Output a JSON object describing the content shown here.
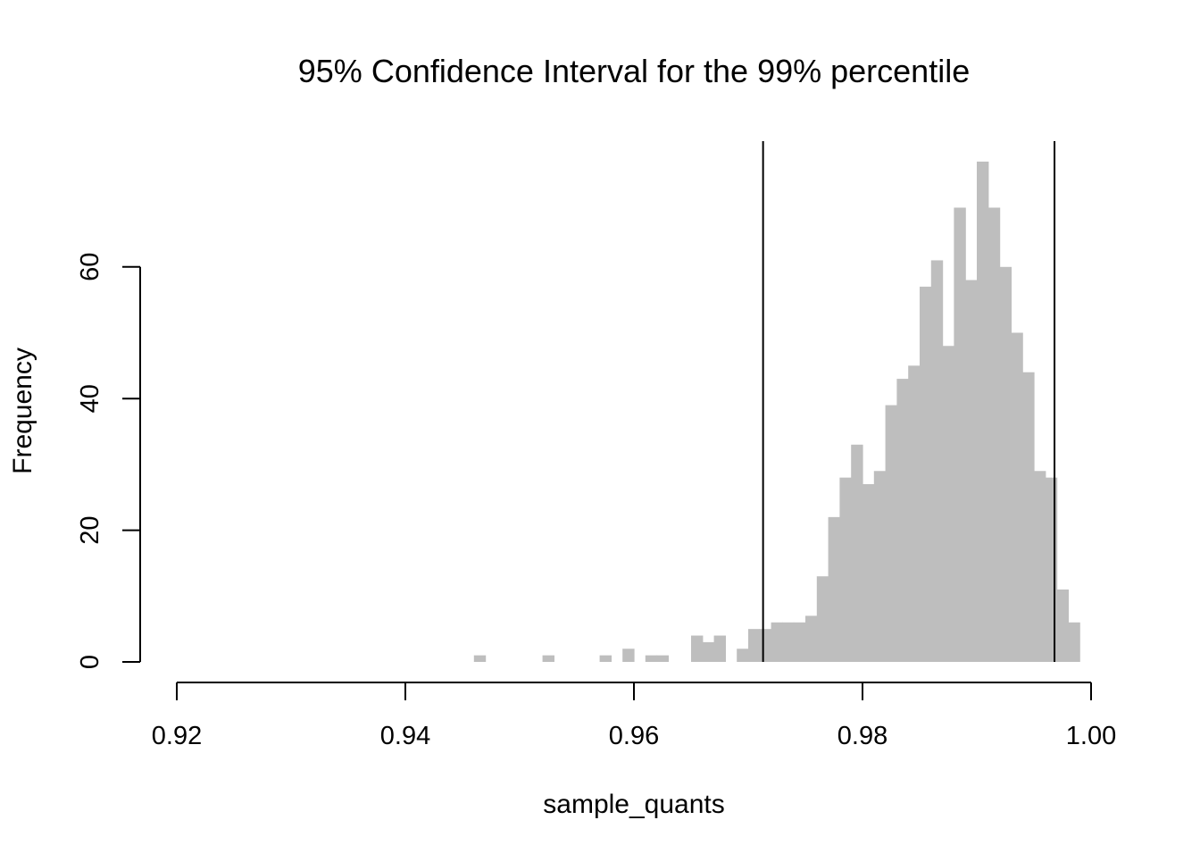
{
  "chart_data": {
    "type": "bar",
    "subtype": "histogram",
    "title": "95% Confidence Interval for the 99% percentile",
    "xlabel": "sample_quants",
    "ylabel": "Frequency",
    "xlim": [
      0.92,
      1.0
    ],
    "ylim": [
      0,
      76
    ],
    "x_ticks": [
      0.92,
      0.94,
      0.96,
      0.98,
      1.0
    ],
    "x_tick_labels": [
      "0.92",
      "0.94",
      "0.96",
      "0.98",
      "1.00"
    ],
    "y_ticks": [
      0,
      20,
      40,
      60
    ],
    "y_tick_labels": [
      "0",
      "20",
      "40",
      "60"
    ],
    "bin_width": 0.001,
    "bins": [
      {
        "x0": 0.946,
        "x1": 0.947,
        "count": 1
      },
      {
        "x0": 0.952,
        "x1": 0.953,
        "count": 1
      },
      {
        "x0": 0.957,
        "x1": 0.958,
        "count": 1
      },
      {
        "x0": 0.959,
        "x1": 0.96,
        "count": 2
      },
      {
        "x0": 0.961,
        "x1": 0.962,
        "count": 1
      },
      {
        "x0": 0.962,
        "x1": 0.963,
        "count": 1
      },
      {
        "x0": 0.965,
        "x1": 0.966,
        "count": 4
      },
      {
        "x0": 0.966,
        "x1": 0.967,
        "count": 3
      },
      {
        "x0": 0.967,
        "x1": 0.968,
        "count": 4
      },
      {
        "x0": 0.969,
        "x1": 0.97,
        "count": 2
      },
      {
        "x0": 0.97,
        "x1": 0.971,
        "count": 5
      },
      {
        "x0": 0.971,
        "x1": 0.972,
        "count": 5
      },
      {
        "x0": 0.972,
        "x1": 0.973,
        "count": 6
      },
      {
        "x0": 0.973,
        "x1": 0.974,
        "count": 6
      },
      {
        "x0": 0.974,
        "x1": 0.975,
        "count": 6
      },
      {
        "x0": 0.975,
        "x1": 0.976,
        "count": 7
      },
      {
        "x0": 0.976,
        "x1": 0.977,
        "count": 13
      },
      {
        "x0": 0.977,
        "x1": 0.978,
        "count": 22
      },
      {
        "x0": 0.978,
        "x1": 0.979,
        "count": 28
      },
      {
        "x0": 0.979,
        "x1": 0.98,
        "count": 33
      },
      {
        "x0": 0.98,
        "x1": 0.981,
        "count": 27
      },
      {
        "x0": 0.981,
        "x1": 0.982,
        "count": 29
      },
      {
        "x0": 0.982,
        "x1": 0.983,
        "count": 39
      },
      {
        "x0": 0.983,
        "x1": 0.984,
        "count": 43
      },
      {
        "x0": 0.984,
        "x1": 0.985,
        "count": 45
      },
      {
        "x0": 0.985,
        "x1": 0.986,
        "count": 57
      },
      {
        "x0": 0.986,
        "x1": 0.987,
        "count": 61
      },
      {
        "x0": 0.987,
        "x1": 0.988,
        "count": 48
      },
      {
        "x0": 0.988,
        "x1": 0.989,
        "count": 69
      },
      {
        "x0": 0.989,
        "x1": 0.99,
        "count": 58
      },
      {
        "x0": 0.99,
        "x1": 0.991,
        "count": 76
      },
      {
        "x0": 0.991,
        "x1": 0.992,
        "count": 69
      },
      {
        "x0": 0.992,
        "x1": 0.993,
        "count": 60
      },
      {
        "x0": 0.993,
        "x1": 0.994,
        "count": 50
      },
      {
        "x0": 0.994,
        "x1": 0.995,
        "count": 44
      },
      {
        "x0": 0.995,
        "x1": 0.996,
        "count": 29
      },
      {
        "x0": 0.996,
        "x1": 0.997,
        "count": 28
      },
      {
        "x0": 0.997,
        "x1": 0.998,
        "count": 11
      },
      {
        "x0": 0.998,
        "x1": 0.999,
        "count": 6
      }
    ],
    "reference_lines": [
      {
        "orientation": "vertical",
        "x": 0.9713
      },
      {
        "orientation": "vertical",
        "x": 0.9968
      }
    ],
    "colors": {
      "bar_fill": "#bebebe",
      "line": "#000000",
      "background": "#ffffff"
    },
    "grid": false,
    "legend": "none"
  }
}
